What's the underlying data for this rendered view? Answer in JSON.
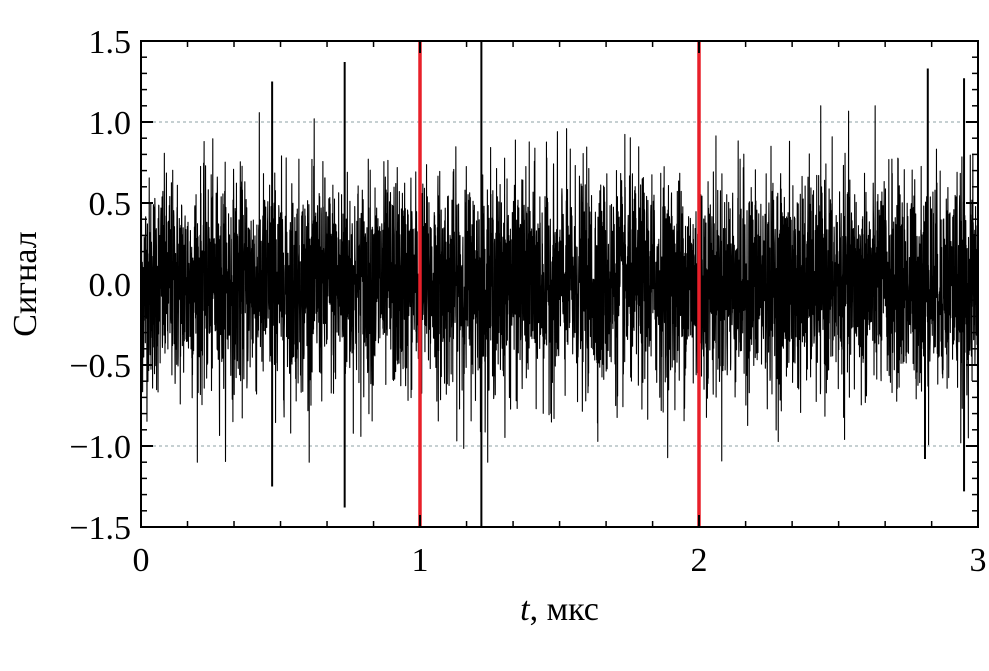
{
  "chart_data": {
    "type": "line",
    "title": "",
    "xlabel_var": "t",
    "xlabel_unit": ", мкс",
    "ylabel": "Сигнал",
    "xlim": [
      0,
      3
    ],
    "ylim": [
      -1.5,
      1.5
    ],
    "x_ticks": [
      0,
      1,
      2,
      3
    ],
    "x_tick_labels": [
      "0",
      "1",
      "2",
      "3"
    ],
    "x_minor_step": 0.1667,
    "y_ticks": [
      1.5,
      1.0,
      0.5,
      0.0,
      -0.5,
      -1.0,
      -1.5
    ],
    "y_tick_labels": [
      "1.5",
      "1.0",
      "0.5",
      "0.0",
      "−0.5",
      "−1.0",
      "−1.5"
    ],
    "y_minor_step": 0.1,
    "gridlines_y": [
      1.0,
      -1.0
    ],
    "series": [
      {
        "kind": "noise",
        "color": "#000000",
        "x_range": [
          0,
          3
        ],
        "typical_envelope": 0.85,
        "spikes": [
          {
            "x": 0.47,
            "y": -1.25
          },
          {
            "x": 0.73,
            "y": 1.37
          },
          {
            "x": 0.73,
            "y": -1.38
          },
          {
            "x": 0.47,
            "y": 1.25
          },
          {
            "x": 1.22,
            "y": 1.5
          },
          {
            "x": 1.22,
            "y": -1.5
          },
          {
            "x": 2.82,
            "y": 1.33
          },
          {
            "x": 2.95,
            "y": 1.27
          },
          {
            "x": 2.95,
            "y": -1.28
          },
          {
            "x": 2.81,
            "y": -1.08
          }
        ]
      }
    ],
    "markers": [
      {
        "x": 1.0,
        "color": "#e8202a"
      },
      {
        "x": 2.0,
        "color": "#e8202a"
      }
    ],
    "grid": false,
    "legend": "none"
  }
}
